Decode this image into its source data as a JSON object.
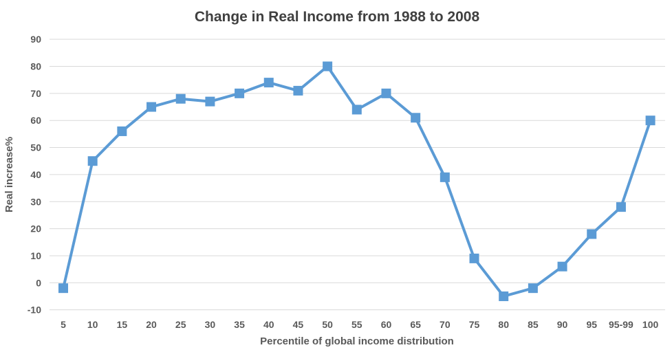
{
  "chart_data": {
    "type": "line",
    "title": "Change in Real Income from 1988 to 2008",
    "xlabel": "Percentile of global income distribution",
    "ylabel": "Real increase%",
    "categories": [
      "5",
      "10",
      "15",
      "20",
      "25",
      "30",
      "35",
      "40",
      "45",
      "50",
      "55",
      "60",
      "65",
      "70",
      "75",
      "80",
      "85",
      "90",
      "95",
      "95-99",
      "100"
    ],
    "series": [
      {
        "name": "Real increase %",
        "values": [
          -2,
          45,
          56,
          65,
          68,
          67,
          70,
          74,
          71,
          80,
          64,
          70,
          61,
          39,
          9,
          -5,
          -2,
          6,
          18,
          28,
          60
        ]
      }
    ],
    "ylim": [
      -10,
      90
    ],
    "ytick_step": 10,
    "grid": "horizontal",
    "legend": "none",
    "marker": "square",
    "colors": {
      "series": "#5B9BD5",
      "gridline": "#D9D9D9",
      "title": "#404040",
      "labels": "#595959",
      "background": "#FFFFFF"
    }
  }
}
